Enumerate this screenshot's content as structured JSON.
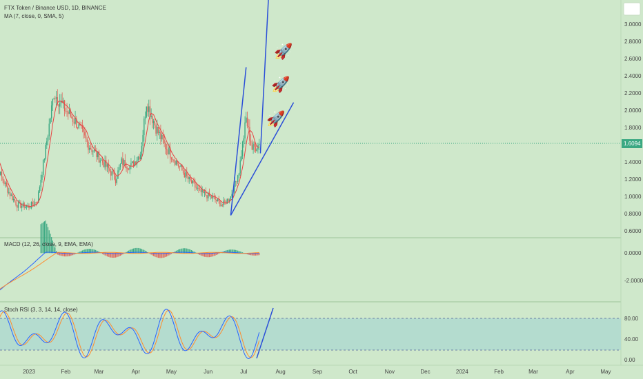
{
  "header": {
    "title": "FTX Token / Binance USD, 1D, BINANCE",
    "ma_label": "MA (7, close, 0, SMA, 5)"
  },
  "panes": {
    "macd_label": "MACD (12, 26, close, 9, EMA, EMA)",
    "stoch_label": "Stoch RSI (3, 3, 14, 14, close)"
  },
  "price_axis": {
    "ticks": [
      "3.0000",
      "2.8000",
      "2.6000",
      "2.4000",
      "2.2000",
      "2.0000",
      "1.8000",
      "1.6000",
      "1.4000",
      "1.2000",
      "1.0000",
      "0.8000",
      "0.6000"
    ],
    "current_price": "1.6094"
  },
  "macd_axis": {
    "ticks": [
      "0.0000",
      "-2.0000"
    ]
  },
  "stoch_axis": {
    "ticks": [
      "80.00",
      "40.00",
      "0.00"
    ]
  },
  "time_axis": {
    "ticks": [
      "2023",
      "Feb",
      "Mar",
      "Apr",
      "May",
      "Jun",
      "Jul",
      "Aug",
      "Sep",
      "Oct",
      "Nov",
      "Dec",
      "2024",
      "Feb",
      "Mar",
      "Apr",
      "May"
    ]
  },
  "icons": {
    "rocket": "🚀"
  },
  "colors": {
    "background": "#cfe8cb",
    "candle_up": "#3aa882",
    "candle_down": "#e0645a",
    "ma_line": "#e84040",
    "trendline": "#2a4ed8",
    "price_badge": "#3aa882",
    "macd_line": "#2962ff",
    "signal_line": "#ff8c2e",
    "stoch_k": "#2962ff",
    "stoch_d": "#ff8c2e",
    "stoch_band": "#b4dccf"
  },
  "chart_data": {
    "type": "candlestick",
    "title": "FTX Token / Binance USD, 1D, BINANCE",
    "ylim": [
      0.55,
      3.15
    ],
    "current_price": 1.6094,
    "price_path": [
      {
        "date": "2022-12-01",
        "price": 1.55
      },
      {
        "date": "2022-12-08",
        "price": 1.25
      },
      {
        "date": "2022-12-15",
        "price": 1.05
      },
      {
        "date": "2022-12-22",
        "price": 0.9
      },
      {
        "date": "2023-01-01",
        "price": 0.88
      },
      {
        "date": "2023-01-08",
        "price": 0.95
      },
      {
        "date": "2023-01-15",
        "price": 1.55
      },
      {
        "date": "2023-01-22",
        "price": 2.2
      },
      {
        "date": "2023-02-01",
        "price": 2.0
      },
      {
        "date": "2023-02-10",
        "price": 1.85
      },
      {
        "date": "2023-02-20",
        "price": 1.6
      },
      {
        "date": "2023-03-01",
        "price": 1.45
      },
      {
        "date": "2023-03-10",
        "price": 1.3
      },
      {
        "date": "2023-03-15",
        "price": 1.2
      },
      {
        "date": "2023-03-20",
        "price": 1.4
      },
      {
        "date": "2023-03-28",
        "price": 1.35
      },
      {
        "date": "2023-04-05",
        "price": 1.5
      },
      {
        "date": "2023-04-10",
        "price": 2.1
      },
      {
        "date": "2023-04-18",
        "price": 1.8
      },
      {
        "date": "2023-04-25",
        "price": 1.6
      },
      {
        "date": "2023-05-05",
        "price": 1.4
      },
      {
        "date": "2023-05-15",
        "price": 1.2
      },
      {
        "date": "2023-05-25",
        "price": 1.05
      },
      {
        "date": "2023-06-05",
        "price": 0.98
      },
      {
        "date": "2023-06-13",
        "price": 0.9
      },
      {
        "date": "2023-06-20",
        "price": 1.0
      },
      {
        "date": "2023-06-27",
        "price": 1.3
      },
      {
        "date": "2023-07-03",
        "price": 1.9
      },
      {
        "date": "2023-07-08",
        "price": 1.55
      },
      {
        "date": "2023-07-14",
        "price": 1.61
      }
    ],
    "annotations": [
      {
        "type": "trendline",
        "from": {
          "date": "2023-06-20",
          "price": 0.78
        },
        "to": {
          "date": "2023-07-03",
          "price": 2.5
        }
      },
      {
        "type": "trendline",
        "from": {
          "date": "2023-06-20",
          "price": 0.78
        },
        "to": {
          "date": "2023-08-12",
          "price": 2.09
        }
      },
      {
        "type": "trendline",
        "from": {
          "date": "2023-07-15",
          "price": 1.5
        },
        "to": {
          "date": "2023-07-22",
          "price": 3.35
        }
      },
      {
        "type": "icon",
        "icon": "rocket",
        "count": 3
      }
    ],
    "indicators": [
      {
        "name": "MA (7, close, 0, SMA, 5)"
      },
      {
        "name": "MACD (12, 26, close, 9, EMA, EMA)",
        "ticks": [
          0,
          -2
        ]
      },
      {
        "name": "Stoch RSI (3, 3, 14, 14, close)",
        "levels": [
          80,
          20
        ],
        "ticks": [
          80,
          40,
          0
        ]
      }
    ]
  }
}
